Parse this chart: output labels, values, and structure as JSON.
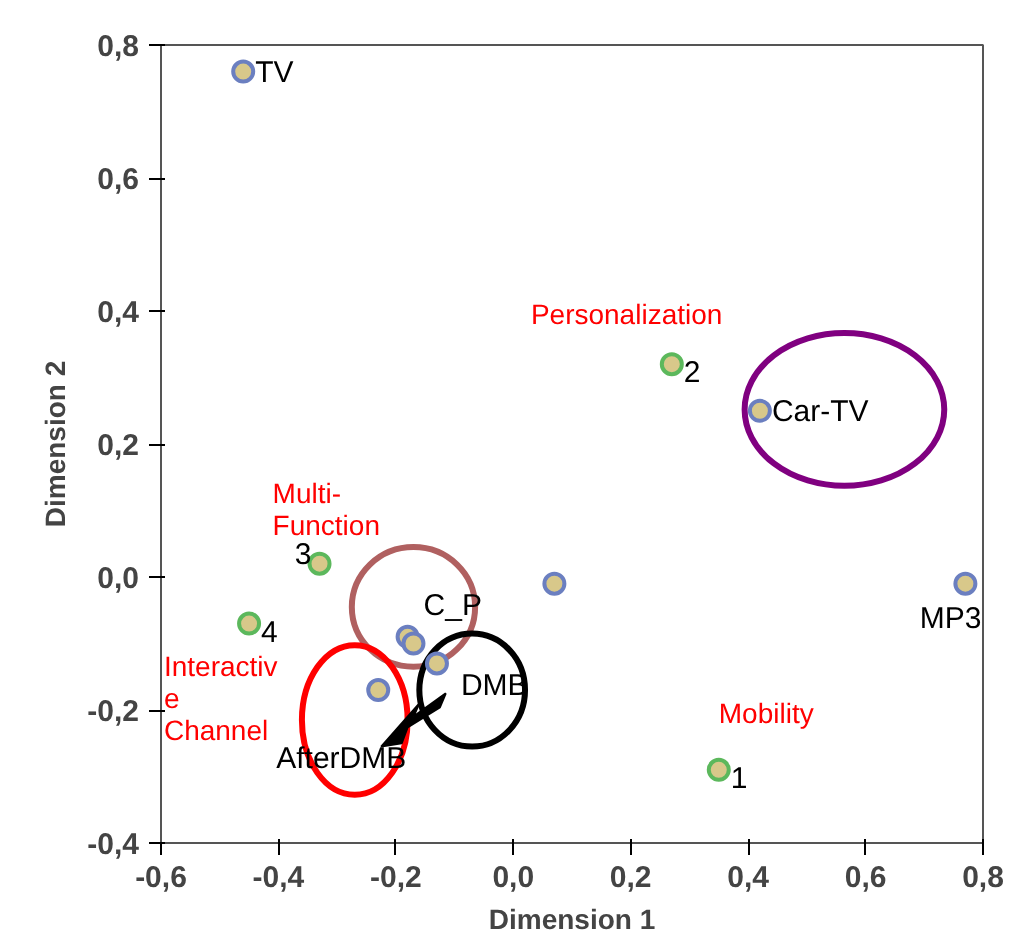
{
  "chart_data": {
    "type": "scatter",
    "xlabel": "Dimension 1",
    "ylabel": "Dimension 2",
    "xlim": [
      -0.6,
      0.8
    ],
    "ylim": [
      -0.4,
      0.8
    ],
    "xticks": [
      {
        "value": -0.6,
        "label": "-0,6"
      },
      {
        "value": -0.4,
        "label": "-0,4"
      },
      {
        "value": -0.2,
        "label": "-0,2"
      },
      {
        "value": 0.0,
        "label": "0,0"
      },
      {
        "value": 0.2,
        "label": "0,2"
      },
      {
        "value": 0.4,
        "label": "0,4"
      },
      {
        "value": 0.6,
        "label": "0,6"
      },
      {
        "value": 0.8,
        "label": "0,8"
      }
    ],
    "yticks": [
      {
        "value": -0.4,
        "label": "-0,4"
      },
      {
        "value": -0.2,
        "label": "-0,2"
      },
      {
        "value": 0.0,
        "label": "0,0"
      },
      {
        "value": 0.2,
        "label": "0,2"
      },
      {
        "value": 0.4,
        "label": "0,4"
      },
      {
        "value": 0.6,
        "label": "0,6"
      },
      {
        "value": 0.8,
        "label": "0,8"
      }
    ],
    "grid": false,
    "legend": false,
    "marker": "circle",
    "series": [
      {
        "name": "TV",
        "color": "#6b7fc0",
        "x": [
          -0.46
        ],
        "values": [
          0.76
        ]
      },
      {
        "name": "Car-TV",
        "color": "#6b7fc0",
        "x": [
          0.42
        ],
        "values": [
          0.25
        ]
      },
      {
        "color": "#6b7fc0",
        "x": [
          0.07
        ],
        "values": [
          -0.01
        ]
      },
      {
        "name": "MP3",
        "color": "#6b7fc0",
        "x": [
          0.77
        ],
        "values": [
          -0.01
        ]
      },
      {
        "name": "C_P",
        "color": "#6b7fc0",
        "x": [
          -0.18
        ],
        "values": [
          -0.09
        ]
      },
      {
        "color": "#6b7fc0",
        "x": [
          -0.17
        ],
        "values": [
          -0.1
        ]
      },
      {
        "name": "DMB",
        "color": "#6b7fc0",
        "x": [
          -0.13
        ],
        "values": [
          -0.13
        ]
      },
      {
        "name": "AfterDMB",
        "color": "#6b7fc0",
        "x": [
          -0.23
        ],
        "values": [
          -0.17
        ]
      },
      {
        "name": "1",
        "color": "#5cb85c",
        "x": [
          0.35
        ],
        "values": [
          -0.29
        ]
      },
      {
        "name": "2",
        "color": "#5cb85c",
        "x": [
          0.27
        ],
        "values": [
          0.32
        ]
      },
      {
        "name": "3",
        "color": "#5cb85c",
        "x": [
          -0.33
        ],
        "values": [
          0.02
        ]
      },
      {
        "name": "4",
        "color": "#5cb85c",
        "x": [
          -0.45
        ],
        "values": [
          -0.07
        ]
      }
    ],
    "annotations": [
      "Personalization",
      "Multi-\nFunction",
      "Interactiv\ne\nChannel",
      "Mobility"
    ]
  }
}
